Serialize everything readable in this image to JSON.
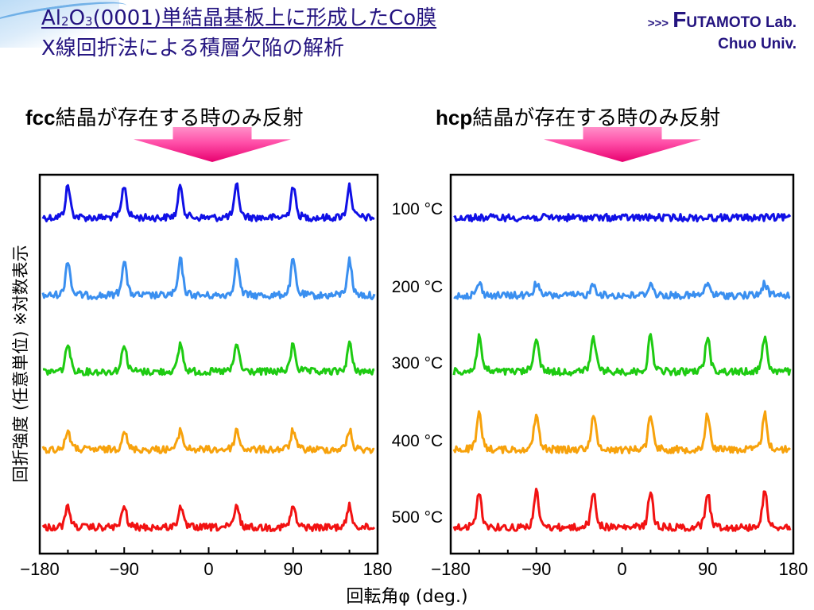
{
  "header": {
    "title_parts": {
      "al": "Al",
      "sub2": "2",
      "o": "O",
      "sub3": "3",
      "rest": "(0001)単結晶基板上に形成したCo膜"
    },
    "title_line2": "X線回折法による積層欠陥の解析",
    "lab_arrows": ">>>",
    "lab_f": "F",
    "lab_name": "UTAMOTO Lab.",
    "lab_univ": "Chuo Univ."
  },
  "panels": {
    "left_bold": "fcc",
    "left_rest": "結晶が存在する時のみ反射",
    "right_bold": "hcp",
    "right_rest": "結晶が存在する時のみ反射"
  },
  "colors": {
    "title": "#241480",
    "arrow": "#ff4fa8",
    "series": [
      "#1010e6",
      "#3a8ff0",
      "#1ecb12",
      "#f7a20c",
      "#f21212"
    ]
  },
  "icons": [
    "down-arrow-icon"
  ],
  "chart_data": [
    {
      "type": "line",
      "panel": "fcc",
      "xlabel": "回転角φ (deg.)",
      "ylabel": "回折強度 (任意単位) ※対数表示",
      "xlim": [
        -180,
        180
      ],
      "x_ticks": [
        -180,
        -90,
        0,
        90,
        180
      ],
      "x_tick_labels": [
        "−180",
        "−90",
        "0",
        "90",
        "180"
      ],
      "y_scale": "log (arbitrary units, curves offset)",
      "series": [
        {
          "name": "100 °C",
          "peaks_x": [
            -150,
            -90,
            -30,
            30,
            90,
            150
          ],
          "peak_height_rel": 0.9
        },
        {
          "name": "200 °C",
          "peaks_x": [
            -150,
            -90,
            -30,
            30,
            90,
            150
          ],
          "peak_height_rel": 1.0
        },
        {
          "name": "300 °C",
          "peaks_x": [
            -150,
            -90,
            -30,
            30,
            90,
            150
          ],
          "peak_height_rel": 0.8
        },
        {
          "name": "400 °C",
          "peaks_x": [
            -150,
            -90,
            -30,
            30,
            90,
            150
          ],
          "peak_height_rel": 0.55
        },
        {
          "name": "500 °C",
          "peaks_x": [
            -150,
            -90,
            -30,
            30,
            90,
            150
          ],
          "peak_height_rel": 0.6
        }
      ]
    },
    {
      "type": "line",
      "panel": "hcp",
      "xlabel": "回転角φ (deg.)",
      "xlim": [
        -180,
        180
      ],
      "x_ticks": [
        -180,
        -90,
        0,
        90,
        180
      ],
      "x_tick_labels": [
        "−180",
        "−90",
        "0",
        "90",
        "180"
      ],
      "y_scale": "log (arbitrary units, curves offset)",
      "series": [
        {
          "name": "100 °C",
          "peaks_x": [],
          "peak_height_rel": 0.0
        },
        {
          "name": "200 °C",
          "peaks_x": [
            -150,
            -90,
            -30,
            30,
            90,
            150
          ],
          "peak_height_rel": 0.35
        },
        {
          "name": "300 °C",
          "peaks_x": [
            -150,
            -90,
            -30,
            30,
            90,
            150
          ],
          "peak_height_rel": 1.0
        },
        {
          "name": "400 °C",
          "peaks_x": [
            -150,
            -90,
            -30,
            30,
            90,
            150
          ],
          "peak_height_rel": 1.0
        },
        {
          "name": "500 °C",
          "peaks_x": [
            -150,
            -90,
            -30,
            30,
            90,
            150
          ],
          "peak_height_rel": 1.0
        }
      ]
    }
  ]
}
